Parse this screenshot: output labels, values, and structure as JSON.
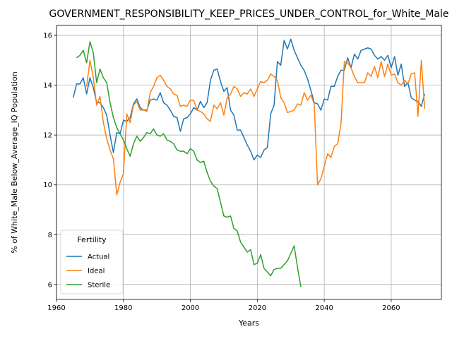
{
  "chart_data": {
    "type": "line",
    "title": "GOVERNMENT_RESPONSIBILITY_KEEP_PRICES_UNDER_CONTROL_for_White_Male",
    "xlabel": "Years",
    "ylabel": "% of White_Male Below_Average_IQ Population",
    "xlim": [
      1960,
      2075
    ],
    "ylim": [
      5.4,
      16.4
    ],
    "xticks": [
      1960,
      1980,
      2000,
      2020,
      2040,
      2060
    ],
    "yticks": [
      6,
      8,
      10,
      12,
      14,
      16
    ],
    "grid": true,
    "legend": {
      "title": "Fertility",
      "position": "lower-left"
    },
    "series": [
      {
        "name": "Actual",
        "color": "#1f77b4",
        "points": [
          [
            1965,
            13.5
          ],
          [
            1966,
            14.05
          ],
          [
            1967,
            14.05
          ],
          [
            1968,
            14.3
          ],
          [
            1969,
            13.65
          ],
          [
            1970,
            14.3
          ],
          [
            1971,
            13.9
          ],
          [
            1972,
            13.3
          ],
          [
            1973,
            13.3
          ],
          [
            1974,
            13.1
          ],
          [
            1975,
            12.8
          ],
          [
            1976,
            12.0
          ],
          [
            1977,
            11.3
          ],
          [
            1978,
            12.1
          ],
          [
            1979,
            12.05
          ],
          [
            1980,
            12.6
          ],
          [
            1981,
            12.55
          ],
          [
            1982,
            12.7
          ],
          [
            1983,
            13.25
          ],
          [
            1984,
            13.45
          ],
          [
            1985,
            13.1
          ],
          [
            1986,
            13.0
          ],
          [
            1987,
            13.0
          ],
          [
            1988,
            13.4
          ],
          [
            1989,
            13.45
          ],
          [
            1990,
            13.4
          ],
          [
            1991,
            13.7
          ],
          [
            1992,
            13.3
          ],
          [
            1993,
            13.2
          ],
          [
            1994,
            13.0
          ],
          [
            1995,
            12.75
          ],
          [
            1996,
            12.7
          ],
          [
            1997,
            12.15
          ],
          [
            1998,
            12.65
          ],
          [
            1999,
            12.7
          ],
          [
            2000,
            12.85
          ],
          [
            2001,
            13.1
          ],
          [
            2002,
            13.0
          ],
          [
            2003,
            13.35
          ],
          [
            2004,
            13.1
          ],
          [
            2005,
            13.3
          ],
          [
            2006,
            14.2
          ],
          [
            2007,
            14.6
          ],
          [
            2008,
            14.65
          ],
          [
            2009,
            14.15
          ],
          [
            2010,
            13.75
          ],
          [
            2011,
            13.9
          ],
          [
            2012,
            13.0
          ],
          [
            2013,
            12.8
          ],
          [
            2014,
            12.2
          ],
          [
            2015,
            12.2
          ],
          [
            2016,
            11.9
          ],
          [
            2017,
            11.6
          ],
          [
            2018,
            11.35
          ],
          [
            2019,
            11.0
          ],
          [
            2020,
            11.2
          ],
          [
            2021,
            11.1
          ],
          [
            2022,
            11.4
          ],
          [
            2023,
            11.5
          ],
          [
            2024,
            12.85
          ],
          [
            2025,
            13.2
          ],
          [
            2026,
            14.95
          ],
          [
            2027,
            14.8
          ],
          [
            2028,
            15.8
          ],
          [
            2029,
            15.45
          ],
          [
            2030,
            15.85
          ],
          [
            2031,
            15.4
          ],
          [
            2032,
            15.1
          ],
          [
            2033,
            14.8
          ],
          [
            2034,
            14.6
          ],
          [
            2035,
            14.25
          ],
          [
            2036,
            13.8
          ],
          [
            2037,
            13.3
          ],
          [
            2038,
            13.25
          ],
          [
            2039,
            13.0
          ],
          [
            2040,
            13.45
          ],
          [
            2041,
            13.4
          ],
          [
            2042,
            13.95
          ],
          [
            2043,
            13.95
          ],
          [
            2044,
            14.35
          ],
          [
            2045,
            14.6
          ],
          [
            2046,
            14.6
          ],
          [
            2047,
            15.1
          ],
          [
            2048,
            14.7
          ],
          [
            2049,
            15.25
          ],
          [
            2050,
            15.05
          ],
          [
            2051,
            15.4
          ],
          [
            2052,
            15.45
          ],
          [
            2053,
            15.5
          ],
          [
            2054,
            15.45
          ],
          [
            2055,
            15.2
          ],
          [
            2056,
            15.05
          ],
          [
            2057,
            15.15
          ],
          [
            2058,
            15.0
          ],
          [
            2059,
            15.2
          ],
          [
            2060,
            14.7
          ],
          [
            2061,
            15.15
          ],
          [
            2062,
            14.4
          ],
          [
            2063,
            14.85
          ],
          [
            2064,
            13.95
          ],
          [
            2065,
            14.1
          ],
          [
            2066,
            13.5
          ],
          [
            2067,
            13.4
          ],
          [
            2068,
            13.35
          ],
          [
            2069,
            13.15
          ],
          [
            2070,
            13.65
          ]
        ]
      },
      {
        "name": "Ideal",
        "color": "#ff7f0e",
        "points": [
          [
            1969,
            13.95
          ],
          [
            1970,
            15.0
          ],
          [
            1971,
            14.3
          ],
          [
            1972,
            13.2
          ],
          [
            1973,
            13.55
          ],
          [
            1974,
            12.5
          ],
          [
            1975,
            11.85
          ],
          [
            1976,
            11.4
          ],
          [
            1977,
            11.05
          ],
          [
            1978,
            9.6
          ],
          [
            1979,
            10.1
          ],
          [
            1980,
            10.45
          ],
          [
            1981,
            12.85
          ],
          [
            1982,
            12.5
          ],
          [
            1983,
            13.2
          ],
          [
            1984,
            13.35
          ],
          [
            1985,
            13.0
          ],
          [
            1986,
            13.0
          ],
          [
            1987,
            12.95
          ],
          [
            1988,
            13.7
          ],
          [
            1989,
            13.95
          ],
          [
            1990,
            14.3
          ],
          [
            1991,
            14.4
          ],
          [
            1992,
            14.2
          ],
          [
            1993,
            13.95
          ],
          [
            1994,
            13.85
          ],
          [
            1995,
            13.65
          ],
          [
            1996,
            13.6
          ],
          [
            1997,
            13.15
          ],
          [
            1998,
            13.2
          ],
          [
            1999,
            13.15
          ],
          [
            2000,
            13.4
          ],
          [
            2001,
            13.4
          ],
          [
            2002,
            13.0
          ],
          [
            2003,
            12.95
          ],
          [
            2004,
            12.85
          ],
          [
            2005,
            12.65
          ],
          [
            2006,
            12.55
          ],
          [
            2007,
            13.2
          ],
          [
            2008,
            13.05
          ],
          [
            2009,
            13.3
          ],
          [
            2010,
            12.8
          ],
          [
            2011,
            13.5
          ],
          [
            2012,
            13.65
          ],
          [
            2013,
            13.95
          ],
          [
            2014,
            13.85
          ],
          [
            2015,
            13.55
          ],
          [
            2016,
            13.7
          ],
          [
            2017,
            13.65
          ],
          [
            2018,
            13.85
          ],
          [
            2019,
            13.55
          ],
          [
            2020,
            13.85
          ],
          [
            2021,
            14.15
          ],
          [
            2022,
            14.1
          ],
          [
            2023,
            14.2
          ],
          [
            2024,
            14.45
          ],
          [
            2025,
            14.35
          ],
          [
            2026,
            14.2
          ],
          [
            2027,
            13.5
          ],
          [
            2028,
            13.3
          ],
          [
            2029,
            12.9
          ],
          [
            2030,
            12.95
          ],
          [
            2031,
            13.0
          ],
          [
            2032,
            13.25
          ],
          [
            2033,
            13.2
          ],
          [
            2034,
            13.7
          ],
          [
            2035,
            13.4
          ],
          [
            2036,
            13.6
          ],
          [
            2037,
            13.25
          ],
          [
            2038,
            10.0
          ],
          [
            2039,
            10.25
          ],
          [
            2040,
            10.75
          ],
          [
            2041,
            11.25
          ],
          [
            2042,
            11.1
          ],
          [
            2043,
            11.55
          ],
          [
            2044,
            11.65
          ],
          [
            2045,
            12.45
          ],
          [
            2046,
            14.95
          ],
          [
            2047,
            14.9
          ],
          [
            2048,
            14.7
          ],
          [
            2049,
            14.35
          ],
          [
            2050,
            14.1
          ],
          [
            2051,
            14.1
          ],
          [
            2052,
            14.1
          ],
          [
            2053,
            14.5
          ],
          [
            2054,
            14.35
          ],
          [
            2055,
            14.75
          ],
          [
            2056,
            14.3
          ],
          [
            2057,
            14.95
          ],
          [
            2058,
            14.35
          ],
          [
            2059,
            14.85
          ],
          [
            2060,
            14.4
          ],
          [
            2061,
            14.45
          ],
          [
            2062,
            14.1
          ],
          [
            2063,
            14.0
          ],
          [
            2064,
            14.2
          ],
          [
            2065,
            14.05
          ],
          [
            2066,
            14.45
          ],
          [
            2067,
            14.5
          ],
          [
            2068,
            12.75
          ],
          [
            2069,
            15.0
          ],
          [
            2070,
            13.05
          ]
        ]
      },
      {
        "name": "Sterile",
        "color": "#2ca02c",
        "points": [
          [
            1966,
            15.1
          ],
          [
            1967,
            15.2
          ],
          [
            1968,
            15.4
          ],
          [
            1969,
            14.9
          ],
          [
            1970,
            15.75
          ],
          [
            1971,
            15.3
          ],
          [
            1972,
            14.1
          ],
          [
            1973,
            14.65
          ],
          [
            1974,
            14.3
          ],
          [
            1975,
            14.1
          ],
          [
            1976,
            13.3
          ],
          [
            1977,
            12.7
          ],
          [
            1978,
            12.3
          ],
          [
            1979,
            12.05
          ],
          [
            1980,
            11.8
          ],
          [
            1981,
            11.45
          ],
          [
            1982,
            11.15
          ],
          [
            1983,
            11.65
          ],
          [
            1984,
            11.95
          ],
          [
            1985,
            11.75
          ],
          [
            1986,
            11.9
          ],
          [
            1987,
            12.1
          ],
          [
            1988,
            12.05
          ],
          [
            1989,
            12.25
          ],
          [
            1990,
            12.0
          ],
          [
            1991,
            11.95
          ],
          [
            1992,
            12.05
          ],
          [
            1993,
            11.8
          ],
          [
            1994,
            11.75
          ],
          [
            1995,
            11.65
          ],
          [
            1996,
            11.4
          ],
          [
            1997,
            11.35
          ],
          [
            1998,
            11.35
          ],
          [
            1999,
            11.25
          ],
          [
            2000,
            11.45
          ],
          [
            2001,
            11.35
          ],
          [
            2002,
            11.0
          ],
          [
            2003,
            10.9
          ],
          [
            2004,
            10.95
          ],
          [
            2005,
            10.5
          ],
          [
            2006,
            10.15
          ],
          [
            2007,
            9.95
          ],
          [
            2008,
            9.85
          ],
          [
            2009,
            9.3
          ],
          [
            2010,
            8.75
          ],
          [
            2011,
            8.7
          ],
          [
            2012,
            8.75
          ],
          [
            2013,
            8.25
          ],
          [
            2014,
            8.15
          ],
          [
            2015,
            7.7
          ],
          [
            2016,
            7.5
          ],
          [
            2017,
            7.3
          ],
          [
            2018,
            7.4
          ],
          [
            2019,
            6.8
          ],
          [
            2020,
            6.85
          ],
          [
            2021,
            7.2
          ],
          [
            2022,
            6.65
          ],
          [
            2023,
            6.5
          ],
          [
            2024,
            6.35
          ],
          [
            2025,
            6.6
          ],
          [
            2026,
            6.65
          ],
          [
            2027,
            6.65
          ],
          [
            2028,
            6.8
          ],
          [
            2029,
            6.95
          ],
          [
            2030,
            7.25
          ],
          [
            2031,
            7.55
          ],
          [
            2032,
            6.7
          ],
          [
            2033,
            5.9
          ]
        ]
      }
    ]
  }
}
